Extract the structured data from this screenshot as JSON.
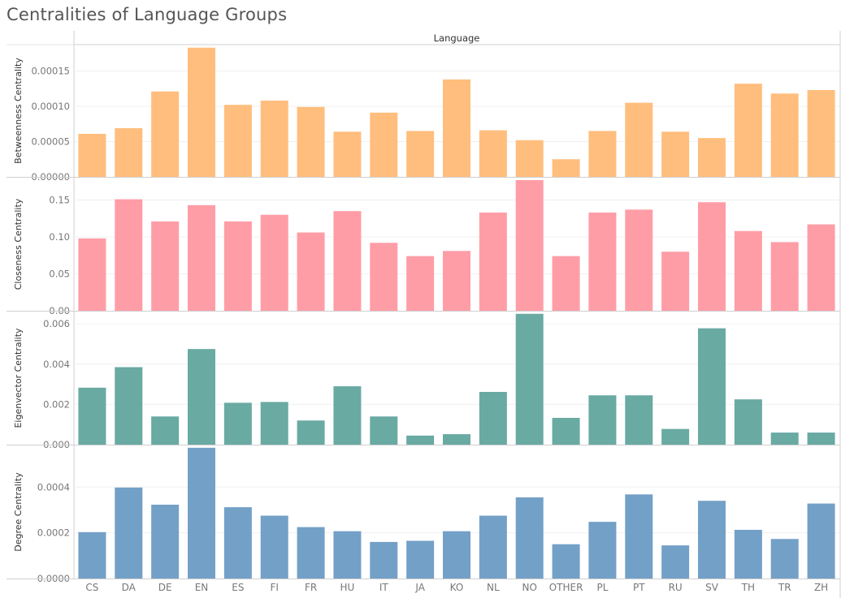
{
  "title": "Centralities of Language Groups",
  "chart_data": {
    "type": "bar",
    "column_header": "Language",
    "categories": [
      "CS",
      "DA",
      "DE",
      "EN",
      "ES",
      "FI",
      "FR",
      "HU",
      "IT",
      "JA",
      "KO",
      "NL",
      "NO",
      "OTHER",
      "PL",
      "PT",
      "RU",
      "SV",
      "TH",
      "TR",
      "ZH"
    ],
    "panels": [
      {
        "ylabel": "Betweenness Centrality",
        "color": "#ffbe7d",
        "ylim": [
          0,
          0.000185
        ],
        "ticks": [
          0,
          5e-05,
          0.0001,
          0.00015
        ],
        "tick_labels": [
          "0.00000",
          "0.00005",
          "0.00010",
          "0.00015"
        ],
        "values": [
          6.1e-05,
          6.9e-05,
          0.000121,
          0.000183,
          0.000102,
          0.000108,
          9.9e-05,
          6.4e-05,
          9.1e-05,
          6.5e-05,
          0.000138,
          6.6e-05,
          5.2e-05,
          2.5e-05,
          6.5e-05,
          0.000105,
          6.4e-05,
          5.5e-05,
          0.000132,
          0.000118,
          0.000123
        ]
      },
      {
        "ylabel": "Closeness Centrality",
        "color": "#ff9da7",
        "ylim": [
          0,
          0.178
        ],
        "ticks": [
          0,
          0.05,
          0.1,
          0.15
        ],
        "tick_labels": [
          "0.00",
          "0.05",
          "0.10",
          "0.15"
        ],
        "values": [
          0.098,
          0.151,
          0.121,
          0.143,
          0.121,
          0.13,
          0.106,
          0.135,
          0.092,
          0.074,
          0.081,
          0.133,
          0.177,
          0.074,
          0.133,
          0.137,
          0.08,
          0.147,
          0.108,
          0.093,
          0.117
        ]
      },
      {
        "ylabel": "Eigenvector Centrality",
        "color": "#69aaa3",
        "ylim": [
          0,
          0.00653
        ],
        "ticks": [
          0,
          0.002,
          0.004,
          0.006
        ],
        "tick_labels": [
          "0.000",
          "0.002",
          "0.004",
          "0.006"
        ],
        "values": [
          0.00283,
          0.00385,
          0.0014,
          0.00475,
          0.00208,
          0.00212,
          0.0012,
          0.0029,
          0.0014,
          0.00045,
          0.00052,
          0.00262,
          0.0065,
          0.00133,
          0.00245,
          0.00245,
          0.00078,
          0.00578,
          0.00225,
          0.0006,
          0.0006
        ]
      },
      {
        "ylabel": "Degree Centrality",
        "color": "#73a0c7",
        "ylim": [
          0,
          0.000575
        ],
        "ticks": [
          0,
          0.0002,
          0.0004
        ],
        "tick_labels": [
          "0.0000",
          "0.0002",
          "0.0004"
        ],
        "values": [
          0.000203,
          0.000398,
          0.000323,
          0.000572,
          0.000312,
          0.000275,
          0.000225,
          0.000207,
          0.00016,
          0.000165,
          0.000207,
          0.000275,
          0.000355,
          0.00015,
          0.000248,
          0.000368,
          0.000145,
          0.00034,
          0.000213,
          0.000173,
          0.000328
        ]
      }
    ]
  }
}
